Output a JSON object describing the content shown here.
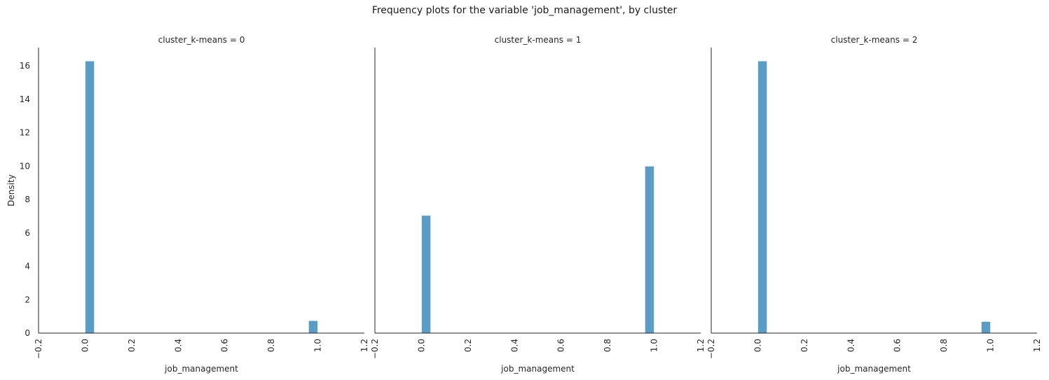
{
  "figure_title": "Frequency plots for the variable 'job_management', by cluster",
  "colors": {
    "bar_fill": "#5b9cc7",
    "bar_edge": "#ffffff",
    "axis": "#262626"
  },
  "chart_data": [
    {
      "type": "bar",
      "title": "cluster_k-means = 0",
      "xlabel": "job_management",
      "ylabel": "Density",
      "xlim": [
        -0.2,
        1.2
      ],
      "ylim": [
        0,
        17.1
      ],
      "xticks": [
        "−0.2",
        "0.0",
        "0.2",
        "0.4",
        "0.6",
        "0.8",
        "1.0",
        "1.2"
      ],
      "yticks": [
        "0",
        "2",
        "4",
        "6",
        "8",
        "10",
        "12",
        "14",
        "16"
      ],
      "grid": false,
      "bins": [
        {
          "x0": 0.0,
          "x1": 0.04,
          "value": 16.3
        },
        {
          "x0": 0.96,
          "x1": 1.0,
          "value": 0.75
        }
      ]
    },
    {
      "type": "bar",
      "title": "cluster_k-means = 1",
      "xlabel": "job_management",
      "ylabel": "",
      "xlim": [
        -0.2,
        1.2
      ],
      "ylim": [
        0,
        17.1
      ],
      "xticks": [
        "−0.2",
        "0.0",
        "0.2",
        "0.4",
        "0.6",
        "0.8",
        "1.0",
        "1.2"
      ],
      "grid": false,
      "bins": [
        {
          "x0": 0.0,
          "x1": 0.04,
          "value": 7.05
        },
        {
          "x0": 0.96,
          "x1": 1.0,
          "value": 10.0
        }
      ]
    },
    {
      "type": "bar",
      "title": "cluster_k-means = 2",
      "xlabel": "job_management",
      "ylabel": "",
      "xlim": [
        -0.2,
        1.2
      ],
      "ylim": [
        0,
        17.1
      ],
      "xticks": [
        "−0.2",
        "0.0",
        "0.2",
        "0.4",
        "0.6",
        "0.8",
        "1.0",
        "1.2"
      ],
      "grid": false,
      "bins": [
        {
          "x0": 0.0,
          "x1": 0.04,
          "value": 16.3
        },
        {
          "x0": 0.96,
          "x1": 1.0,
          "value": 0.7
        }
      ]
    }
  ]
}
